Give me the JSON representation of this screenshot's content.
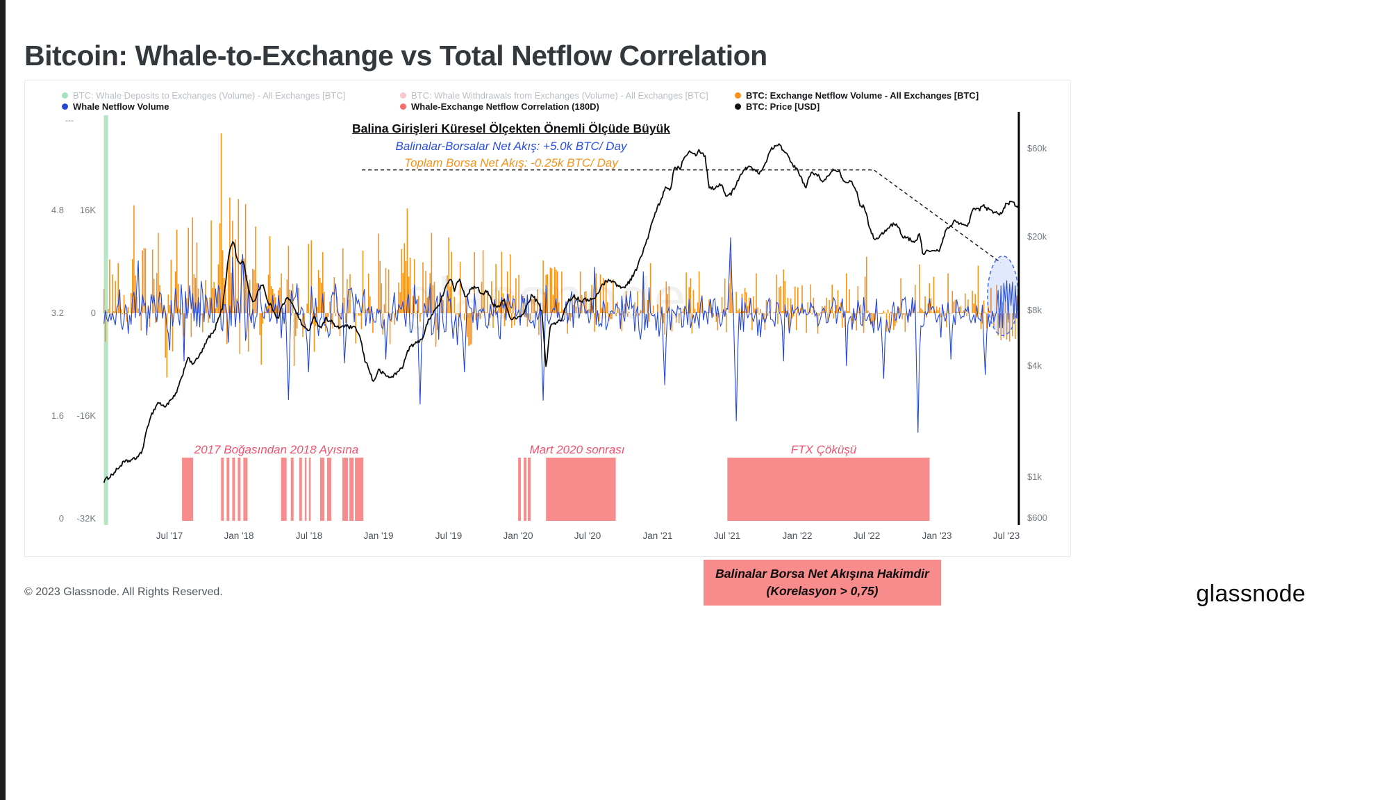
{
  "page": {
    "title": "Bitcoin: Whale-to-Exchange vs Total Netflow Correlation",
    "footer_copyright": "© 2023 Glassnode. All Rights Reserved.",
    "brand": "glassnode",
    "watermark": "glassnode"
  },
  "colors": {
    "orange": "#f7931a",
    "blue": "#2447d6",
    "price": "#0b0b0b",
    "pink_region": "#f88b8b",
    "green_strip": "#b7e6c7",
    "correlation_legend": "#f56e6e",
    "deposit_legend": "#a7e3c0",
    "withdraw_legend": "#f8c8cf",
    "region_text": "#f2536f",
    "annotation_blue": "#2b4fe0",
    "highlight_stroke": "#3b6aec"
  },
  "legend": {
    "rows": [
      [
        {
          "label": "BTC: Whale Deposits to Exchanges (Volume) - All Exchanges [BTC]",
          "color": "#a7e3c0",
          "muted": true
        },
        {
          "label": "BTC: Whale Withdrawals from Exchanges (Volume) - All Exchanges [BTC]",
          "color": "#f8c8cf",
          "muted": true
        },
        {
          "label": "BTC: Exchange Netflow Volume - All Exchanges [BTC]",
          "color": "#f7931a",
          "muted": false
        }
      ],
      [
        {
          "label": "Whale Netflow Volume",
          "color": "#2447d6",
          "muted": false
        },
        {
          "label": "Whale-Exchange Netflow Correlation (180D)",
          "color": "#f56e6e",
          "muted": false
        },
        {
          "label": "BTC: Price [USD]",
          "color": "#111111",
          "muted": false
        }
      ]
    ]
  },
  "annotations": {
    "dash_label": "---",
    "headline": "Balina Girişleri Küresel Ölçekten Önemli Ölçüde Büyük",
    "whale_flow": "Balinalar-Borsalar Net Akış: +5.0k BTC/ Day",
    "total_flow": "Toplam Borsa Net Akış: -0.25k BTC/ Day",
    "region1": "2017 Boğasından 2018 Ayısına",
    "region2": "Mart 2020 sonrası",
    "region3": "FTX Çöküşü",
    "callout_line1": "Balinalar Borsa Net Akışına Hakimdir",
    "callout_line2": "(Korelasyon > 0,75)"
  },
  "axes": {
    "left_correlation": [
      "4.8",
      "3.2",
      "1.6",
      "0"
    ],
    "left_netflow": [
      "16K",
      "0",
      "-16K",
      "-32K"
    ],
    "right_price": [
      "$60k",
      "$20k",
      "$8k",
      "$4k",
      "$1k",
      "$600"
    ],
    "x_ticks": [
      "Jul '17",
      "Jan '18",
      "Jul '18",
      "Jan '19",
      "Jul '19",
      "Jan '20",
      "Jul '20",
      "Jan '21",
      "Jul '21",
      "Jan '22",
      "Jul '22",
      "Jan '23",
      "Jul '23"
    ]
  },
  "chart_data": {
    "type": "mixed-timeseries",
    "time_domain": [
      2017.03,
      2023.585
    ],
    "x_ticks": [
      {
        "t": 2017.5,
        "label": "Jul '17"
      },
      {
        "t": 2018.0,
        "label": "Jan '18"
      },
      {
        "t": 2018.5,
        "label": "Jul '18"
      },
      {
        "t": 2019.0,
        "label": "Jan '19"
      },
      {
        "t": 2019.5,
        "label": "Jul '19"
      },
      {
        "t": 2020.0,
        "label": "Jan '20"
      },
      {
        "t": 2020.5,
        "label": "Jul '20"
      },
      {
        "t": 2021.0,
        "label": "Jan '21"
      },
      {
        "t": 2021.5,
        "label": "Jul '21"
      },
      {
        "t": 2022.0,
        "label": "Jan '22"
      },
      {
        "t": 2022.5,
        "label": "Jul '22"
      },
      {
        "t": 2023.0,
        "label": "Jan '23"
      },
      {
        "t": 2023.5,
        "label": "Jul '23"
      }
    ],
    "price_axis": [
      {
        "p": 60000,
        "label": "$60k"
      },
      {
        "p": 20000,
        "label": "$20k"
      },
      {
        "p": 8000,
        "label": "$8k"
      },
      {
        "p": 4000,
        "label": "$4k"
      },
      {
        "p": 1000,
        "label": "$1k"
      },
      {
        "p": 600,
        "label": "$600"
      }
    ],
    "netflow_axis": [
      {
        "v": 16000,
        "netflow_label": "16K",
        "corr_label": "4.8"
      },
      {
        "v": 0,
        "netflow_label": "0",
        "corr_label": "3.2"
      },
      {
        "v": -16000,
        "netflow_label": "-16K",
        "corr_label": "1.6"
      },
      {
        "v": -32000,
        "netflow_label": "-32K",
        "corr_label": "0"
      }
    ],
    "price_usd_anchors": [
      [
        2017.03,
        950
      ],
      [
        2017.1,
        1050
      ],
      [
        2017.17,
        1200
      ],
      [
        2017.25,
        1250
      ],
      [
        2017.3,
        1350
      ],
      [
        2017.36,
        2100
      ],
      [
        2017.42,
        2550
      ],
      [
        2017.46,
        2400
      ],
      [
        2017.5,
        2550
      ],
      [
        2017.54,
        2750
      ],
      [
        2017.58,
        3300
      ],
      [
        2017.63,
        4450
      ],
      [
        2017.66,
        4100
      ],
      [
        2017.7,
        4350
      ],
      [
        2017.74,
        4900
      ],
      [
        2017.78,
        5700
      ],
      [
        2017.82,
        6100
      ],
      [
        2017.85,
        7300
      ],
      [
        2017.88,
        8200
      ],
      [
        2017.9,
        11000
      ],
      [
        2017.93,
        16800
      ],
      [
        2017.96,
        19200
      ],
      [
        2017.98,
        15500
      ],
      [
        2018.0,
        14200
      ],
      [
        2018.03,
        14900
      ],
      [
        2018.06,
        11000
      ],
      [
        2018.1,
        8600
      ],
      [
        2018.14,
        10400
      ],
      [
        2018.17,
        11200
      ],
      [
        2018.2,
        9000
      ],
      [
        2018.24,
        8200
      ],
      [
        2018.28,
        7100
      ],
      [
        2018.3,
        8200
      ],
      [
        2018.34,
        9300
      ],
      [
        2018.38,
        8800
      ],
      [
        2018.42,
        7500
      ],
      [
        2018.46,
        6500
      ],
      [
        2018.5,
        6200
      ],
      [
        2018.54,
        7400
      ],
      [
        2018.58,
        6400
      ],
      [
        2018.62,
        7200
      ],
      [
        2018.66,
        7000
      ],
      [
        2018.7,
        6400
      ],
      [
        2018.75,
        6600
      ],
      [
        2018.8,
        6450
      ],
      [
        2018.84,
        6350
      ],
      [
        2018.87,
        5600
      ],
      [
        2018.9,
        4300
      ],
      [
        2018.93,
        3900
      ],
      [
        2018.96,
        3250
      ],
      [
        2019.0,
        3800
      ],
      [
        2019.04,
        3600
      ],
      [
        2019.08,
        3450
      ],
      [
        2019.13,
        3650
      ],
      [
        2019.17,
        3950
      ],
      [
        2019.22,
        5050
      ],
      [
        2019.27,
        5300
      ],
      [
        2019.32,
        5750
      ],
      [
        2019.36,
        7200
      ],
      [
        2019.4,
        8000
      ],
      [
        2019.44,
        8700
      ],
      [
        2019.48,
        10800
      ],
      [
        2019.52,
        11800
      ],
      [
        2019.54,
        10200
      ],
      [
        2019.58,
        11900
      ],
      [
        2019.62,
        9500
      ],
      [
        2019.66,
        10300
      ],
      [
        2019.7,
        10800
      ],
      [
        2019.74,
        9800
      ],
      [
        2019.78,
        10300
      ],
      [
        2019.82,
        8500
      ],
      [
        2019.86,
        8300
      ],
      [
        2019.9,
        9200
      ],
      [
        2019.94,
        7300
      ],
      [
        2019.98,
        7200
      ],
      [
        2020.02,
        7300
      ],
      [
        2020.06,
        8400
      ],
      [
        2020.1,
        9700
      ],
      [
        2020.14,
        8800
      ],
      [
        2020.17,
        7900
      ],
      [
        2020.2,
        3900
      ],
      [
        2020.23,
        6600
      ],
      [
        2020.27,
        6800
      ],
      [
        2020.31,
        7100
      ],
      [
        2020.35,
        8800
      ],
      [
        2020.4,
        9600
      ],
      [
        2020.45,
        9000
      ],
      [
        2020.5,
        9150
      ],
      [
        2020.55,
        9200
      ],
      [
        2020.6,
        10900
      ],
      [
        2020.65,
        11800
      ],
      [
        2020.7,
        11100
      ],
      [
        2020.75,
        10500
      ],
      [
        2020.8,
        11500
      ],
      [
        2020.84,
        13000
      ],
      [
        2020.88,
        15500
      ],
      [
        2020.92,
        18700
      ],
      [
        2020.96,
        23800
      ],
      [
        2021.0,
        29000
      ],
      [
        2021.03,
        32000
      ],
      [
        2021.06,
        38000
      ],
      [
        2021.09,
        35000
      ],
      [
        2021.12,
        48000
      ],
      [
        2021.16,
        47000
      ],
      [
        2021.19,
        54000
      ],
      [
        2021.23,
        59000
      ],
      [
        2021.27,
        55500
      ],
      [
        2021.3,
        58800
      ],
      [
        2021.34,
        54500
      ],
      [
        2021.37,
        37000
      ],
      [
        2021.41,
        36500
      ],
      [
        2021.45,
        39000
      ],
      [
        2021.49,
        33500
      ],
      [
        2021.53,
        34200
      ],
      [
        2021.57,
        39800
      ],
      [
        2021.61,
        45600
      ],
      [
        2021.65,
        47800
      ],
      [
        2021.69,
        46300
      ],
      [
        2021.73,
        44600
      ],
      [
        2021.77,
        49300
      ],
      [
        2021.81,
        59800
      ],
      [
        2021.84,
        61500
      ],
      [
        2021.87,
        64400
      ],
      [
        2021.9,
        58000
      ],
      [
        2021.93,
        57300
      ],
      [
        2021.96,
        49300
      ],
      [
        2022.0,
        46200
      ],
      [
        2022.03,
        41500
      ],
      [
        2022.06,
        36900
      ],
      [
        2022.1,
        43900
      ],
      [
        2022.14,
        44400
      ],
      [
        2022.18,
        39200
      ],
      [
        2022.22,
        42400
      ],
      [
        2022.26,
        47000
      ],
      [
        2022.3,
        45500
      ],
      [
        2022.34,
        39700
      ],
      [
        2022.38,
        40100
      ],
      [
        2022.42,
        36600
      ],
      [
        2022.45,
        30100
      ],
      [
        2022.48,
        29000
      ],
      [
        2022.52,
        22500
      ],
      [
        2022.56,
        19000
      ],
      [
        2022.6,
        20800
      ],
      [
        2022.64,
        21600
      ],
      [
        2022.68,
        23300
      ],
      [
        2022.72,
        23000
      ],
      [
        2022.76,
        20000
      ],
      [
        2022.8,
        19500
      ],
      [
        2022.84,
        18800
      ],
      [
        2022.88,
        20500
      ],
      [
        2022.9,
        16300
      ],
      [
        2022.94,
        16800
      ],
      [
        2022.98,
        16600
      ],
      [
        2023.02,
        16800
      ],
      [
        2023.06,
        21100
      ],
      [
        2023.1,
        23100
      ],
      [
        2023.14,
        24600
      ],
      [
        2023.18,
        23200
      ],
      [
        2023.22,
        22400
      ],
      [
        2023.26,
        28300
      ],
      [
        2023.3,
        28000
      ],
      [
        2023.34,
        29200
      ],
      [
        2023.38,
        27800
      ],
      [
        2023.42,
        27300
      ],
      [
        2023.46,
        26500
      ],
      [
        2023.5,
        30400
      ],
      [
        2023.54,
        30600
      ],
      [
        2023.58,
        29300
      ],
      [
        2023.6,
        29400
      ]
    ],
    "exchange_netflow": {
      "seed": 42,
      "samples": 640,
      "mode": "bars",
      "envelope": [
        [
          2017.0,
          5000
        ],
        [
          2017.4,
          8000
        ],
        [
          2018.0,
          7000
        ],
        [
          2018.5,
          5500
        ],
        [
          2019.0,
          5200
        ],
        [
          2019.6,
          4200
        ],
        [
          2020.0,
          3200
        ],
        [
          2020.5,
          3000
        ],
        [
          2021.0,
          2800
        ],
        [
          2022.0,
          2600
        ],
        [
          2023.0,
          2300
        ]
      ],
      "spikes": [
        [
          2017.25,
          16800
        ],
        [
          2017.42,
          12500
        ],
        [
          2017.55,
          13000
        ],
        [
          2017.7,
          11000
        ],
        [
          2017.87,
          28000
        ],
        [
          2017.93,
          18000
        ],
        [
          2018.05,
          17000
        ],
        [
          2018.12,
          13500
        ],
        [
          2018.22,
          12000
        ],
        [
          2018.35,
          10500
        ],
        [
          2018.6,
          9500
        ],
        [
          2019.2,
          16300
        ],
        [
          2019.38,
          12500
        ],
        [
          2019.5,
          11800
        ],
        [
          2019.75,
          9800
        ],
        [
          2020.18,
          8200
        ],
        [
          2020.45,
          6500
        ],
        [
          2020.95,
          7800
        ],
        [
          2021.3,
          6500
        ],
        [
          2021.52,
          9200
        ],
        [
          2021.9,
          6800
        ],
        [
          2022.35,
          6200
        ],
        [
          2022.5,
          8800
        ],
        [
          2022.88,
          7600
        ],
        [
          2023.08,
          6200
        ],
        [
          2023.3,
          7400
        ],
        [
          2023.44,
          -3500
        ],
        [
          2023.46,
          -4200
        ],
        [
          2023.48,
          -3800
        ],
        [
          2023.5,
          -4100
        ],
        [
          2023.52,
          -4400
        ],
        [
          2023.54,
          -3600
        ],
        [
          2023.56,
          -4000
        ],
        [
          2023.58,
          -3400
        ]
      ]
    },
    "whale_netflow": {
      "seed": 7,
      "samples": 640,
      "mode": "line",
      "envelope": [
        [
          2017.0,
          3200
        ],
        [
          2017.5,
          4200
        ],
        [
          2018.5,
          3800
        ],
        [
          2019.0,
          3600
        ],
        [
          2019.5,
          3400
        ],
        [
          2020.0,
          3200
        ],
        [
          2020.5,
          3000
        ],
        [
          2021.5,
          2900
        ],
        [
          2022.0,
          2700
        ],
        [
          2023.0,
          2400
        ]
      ],
      "spikes": [
        [
          2017.28,
          8200
        ],
        [
          2017.6,
          -7500
        ],
        [
          2017.95,
          8800
        ],
        [
          2018.02,
          9200
        ],
        [
          2018.35,
          -13500
        ],
        [
          2018.5,
          -9200
        ],
        [
          2018.75,
          -7800
        ],
        [
          2019.05,
          -7200
        ],
        [
          2019.3,
          -14200
        ],
        [
          2019.62,
          -9200
        ],
        [
          2020.18,
          -13600
        ],
        [
          2020.55,
          7200
        ],
        [
          2020.9,
          6500
        ],
        [
          2021.05,
          -11200
        ],
        [
          2021.52,
          11800
        ],
        [
          2021.56,
          -16800
        ],
        [
          2021.9,
          -7500
        ],
        [
          2022.35,
          -8200
        ],
        [
          2022.62,
          -10200
        ],
        [
          2022.87,
          -18600
        ],
        [
          2023.1,
          -7200
        ],
        [
          2023.35,
          -9600
        ],
        [
          2023.44,
          3600
        ],
        [
          2023.46,
          4300
        ],
        [
          2023.48,
          4700
        ],
        [
          2023.5,
          5100
        ],
        [
          2023.52,
          4600
        ],
        [
          2023.54,
          4900
        ],
        [
          2023.56,
          4300
        ],
        [
          2023.58,
          3900
        ]
      ]
    },
    "correlation_regions": [
      [
        2017.59,
        2017.67
      ],
      [
        2017.87,
        2017.89
      ],
      [
        2017.91,
        2017.93
      ],
      [
        2017.95,
        2017.97
      ],
      [
        2017.99,
        2018.01
      ],
      [
        2018.03,
        2018.06
      ],
      [
        2018.3,
        2018.34
      ],
      [
        2018.37,
        2018.39
      ],
      [
        2018.43,
        2018.45
      ],
      [
        2018.47,
        2018.48
      ],
      [
        2018.5,
        2018.51
      ],
      [
        2018.58,
        2018.61
      ],
      [
        2018.63,
        2018.66
      ],
      [
        2018.74,
        2018.78
      ],
      [
        2018.79,
        2018.82
      ],
      [
        2018.83,
        2018.89
      ],
      [
        2020.0,
        2020.02
      ],
      [
        2020.04,
        2020.06
      ],
      [
        2020.07,
        2020.09
      ],
      [
        2020.2,
        2020.7
      ],
      [
        2021.5,
        2022.95
      ]
    ],
    "dashed_guide_price": [
      [
        2018.88,
        46000
      ],
      [
        2022.55,
        46000
      ],
      [
        2023.46,
        14500
      ]
    ],
    "highlight_ellipse": {
      "t": 2023.475,
      "net": 2700,
      "rt": 0.11,
      "rnet": 6200
    },
    "deposits_strip": {
      "t0": 2017.03,
      "t1": 2017.06
    }
  }
}
